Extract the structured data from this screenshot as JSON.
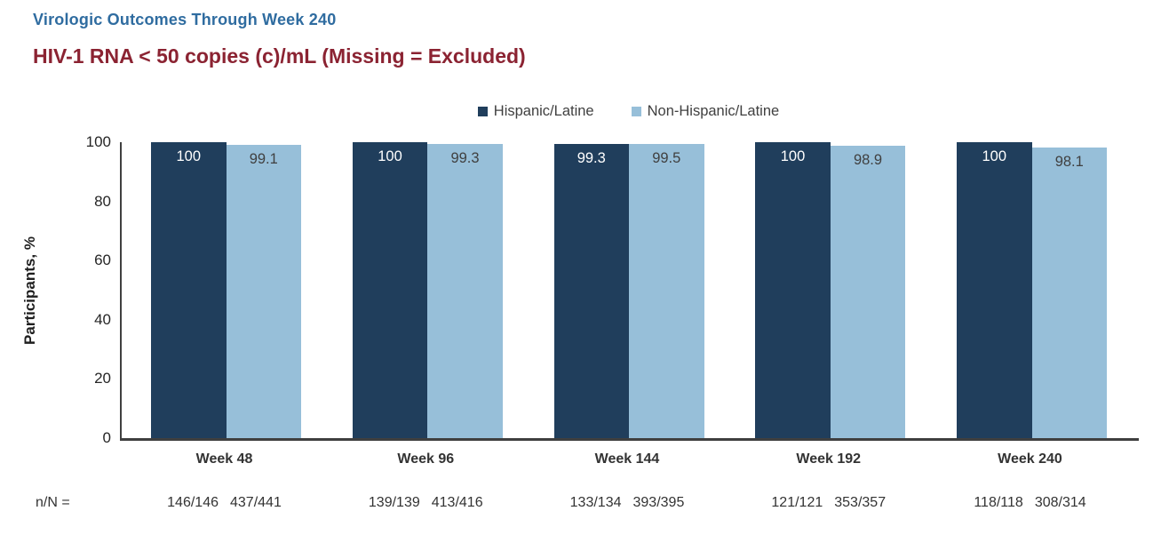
{
  "header": {
    "title": "Virologic Outcomes Through Week 240",
    "subtitle": "HIV-1 RNA < 50 copies (c)/mL (Missing = Excluded)",
    "title_color": "#2F6CA0",
    "subtitle_color": "#8B2332"
  },
  "chart_data": {
    "type": "bar",
    "title": "HIV-1 RNA < 50 copies (c)/mL (Missing = Excluded)",
    "categories": [
      "Week 48",
      "Week 96",
      "Week 144",
      "Week 192",
      "Week 240"
    ],
    "series": [
      {
        "name": "Hispanic/Latine",
        "color": "#203E5C",
        "label_color": "#FFFFFF",
        "values": [
          100,
          100,
          99.3,
          100,
          100
        ]
      },
      {
        "name": "Non-Hispanic/Latine",
        "color": "#97BFD9",
        "label_color": "#404040",
        "values": [
          99.1,
          99.3,
          99.5,
          98.9,
          98.1
        ]
      }
    ],
    "value_labels": [
      [
        "100",
        "99.1"
      ],
      [
        "100",
        "99.3"
      ],
      [
        "99.3",
        "99.5"
      ],
      [
        "100",
        "98.9"
      ],
      [
        "100",
        "98.1"
      ]
    ],
    "n_over_N": {
      "prefix": "n/N =",
      "values": [
        [
          "146/146",
          "437/441"
        ],
        [
          "139/139",
          "413/416"
        ],
        [
          "133/134",
          "393/395"
        ],
        [
          "121/121",
          "353/357"
        ],
        [
          "118/118",
          "308/314"
        ]
      ]
    },
    "xlabel": "",
    "ylabel": "Participants, %",
    "yticks": [
      0,
      20,
      40,
      60,
      80,
      100
    ],
    "ylim": [
      0,
      100
    ],
    "legend_position": "top-center",
    "grid": false,
    "axis_color": "#404040"
  }
}
